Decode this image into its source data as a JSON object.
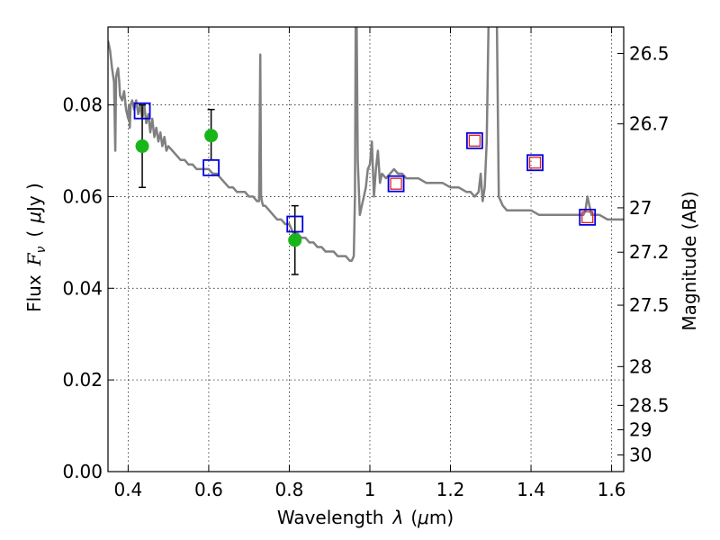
{
  "chart_data": {
    "type": "scatter",
    "xlabel": "Wavelength",
    "xlabel_symbol": "λ",
    "xlabel_unit_prefix": "(",
    "xlabel_unit_mu": "μ",
    "xlabel_unit_suffix": "m)",
    "ylabel_prefix": "Flux",
    "ylabel_symbol_main": "F",
    "ylabel_symbol_sub": "ν",
    "ylabel_unit_open": "(",
    "ylabel_unit_mu": "μ",
    "ylabel_unit_rest": "Jy )",
    "y2label": "Magnitude (AB)",
    "xlim": [
      0.35,
      1.63
    ],
    "ylim": [
      0.0,
      0.097
    ],
    "grid": true,
    "x_ticks": [
      {
        "value": 0.4,
        "label": "0.4"
      },
      {
        "value": 0.6,
        "label": "0.6"
      },
      {
        "value": 0.8,
        "label": "0.8"
      },
      {
        "value": 1.0,
        "label": "1"
      },
      {
        "value": 1.2,
        "label": "1.2"
      },
      {
        "value": 1.4,
        "label": "1.4"
      },
      {
        "value": 1.6,
        "label": "1.6"
      }
    ],
    "y_ticks": [
      {
        "value": 0.0,
        "label": "0.00"
      },
      {
        "value": 0.02,
        "label": "0.02"
      },
      {
        "value": 0.04,
        "label": "0.04"
      },
      {
        "value": 0.06,
        "label": "0.06"
      },
      {
        "value": 0.08,
        "label": "0.08"
      }
    ],
    "y2_ticks": [
      {
        "mag": 26.5,
        "label": "26.5"
      },
      {
        "mag": 26.7,
        "label": "26.7"
      },
      {
        "mag": 27.0,
        "label": "27"
      },
      {
        "mag": 27.2,
        "label": "27.2"
      },
      {
        "mag": 27.5,
        "label": "27.5"
      },
      {
        "mag": 28.0,
        "label": "28"
      },
      {
        "mag": 28.5,
        "label": "28.5"
      },
      {
        "mag": 29.0,
        "label": "29"
      },
      {
        "mag": 30.0,
        "label": "30"
      }
    ],
    "sed_model": {
      "color": "#808080",
      "x": [
        0.35,
        0.355,
        0.36,
        0.365,
        0.368,
        0.37,
        0.372,
        0.375,
        0.378,
        0.38,
        0.385,
        0.39,
        0.395,
        0.4,
        0.402,
        0.404,
        0.406,
        0.41,
        0.415,
        0.42,
        0.425,
        0.43,
        0.435,
        0.44,
        0.445,
        0.45,
        0.455,
        0.46,
        0.465,
        0.47,
        0.475,
        0.48,
        0.485,
        0.49,
        0.495,
        0.5,
        0.51,
        0.52,
        0.53,
        0.54,
        0.55,
        0.56,
        0.57,
        0.58,
        0.59,
        0.6,
        0.61,
        0.62,
        0.63,
        0.64,
        0.65,
        0.66,
        0.67,
        0.68,
        0.69,
        0.7,
        0.71,
        0.72,
        0.725,
        0.728,
        0.73,
        0.732,
        0.735,
        0.74,
        0.75,
        0.76,
        0.77,
        0.78,
        0.79,
        0.8,
        0.81,
        0.82,
        0.83,
        0.84,
        0.85,
        0.86,
        0.87,
        0.88,
        0.89,
        0.9,
        0.91,
        0.92,
        0.93,
        0.94,
        0.95,
        0.955,
        0.96,
        0.963,
        0.965,
        0.967,
        0.97,
        0.975,
        0.98,
        0.985,
        0.99,
        0.995,
        1.0,
        1.005,
        1.01,
        1.015,
        1.02,
        1.025,
        1.03,
        1.04,
        1.05,
        1.06,
        1.07,
        1.08,
        1.09,
        1.1,
        1.12,
        1.14,
        1.16,
        1.18,
        1.2,
        1.22,
        1.24,
        1.25,
        1.26,
        1.27,
        1.275,
        1.28,
        1.285,
        1.29,
        1.295,
        1.3,
        1.305,
        1.31,
        1.315,
        1.32,
        1.33,
        1.34,
        1.35,
        1.36,
        1.37,
        1.38,
        1.4,
        1.42,
        1.44,
        1.46,
        1.48,
        1.5,
        1.52,
        1.53,
        1.535,
        1.54,
        1.55,
        1.57,
        1.59,
        1.61,
        1.63
      ],
      "y": [
        0.094,
        0.092,
        0.088,
        0.085,
        0.07,
        0.086,
        0.087,
        0.088,
        0.085,
        0.082,
        0.081,
        0.083,
        0.079,
        0.077,
        0.08,
        0.075,
        0.08,
        0.081,
        0.079,
        0.081,
        0.078,
        0.08,
        0.077,
        0.08,
        0.076,
        0.078,
        0.074,
        0.077,
        0.073,
        0.075,
        0.072,
        0.074,
        0.071,
        0.073,
        0.07,
        0.071,
        0.07,
        0.069,
        0.068,
        0.068,
        0.067,
        0.067,
        0.066,
        0.066,
        0.066,
        0.066,
        0.065,
        0.065,
        0.064,
        0.063,
        0.062,
        0.062,
        0.061,
        0.061,
        0.061,
        0.06,
        0.06,
        0.059,
        0.059,
        0.091,
        0.06,
        0.059,
        0.058,
        0.058,
        0.057,
        0.056,
        0.055,
        0.055,
        0.054,
        0.054,
        0.052,
        0.052,
        0.051,
        0.051,
        0.05,
        0.05,
        0.049,
        0.049,
        0.048,
        0.048,
        0.048,
        0.047,
        0.047,
        0.047,
        0.046,
        0.046,
        0.047,
        0.06,
        0.1,
        0.1,
        0.068,
        0.056,
        0.058,
        0.06,
        0.062,
        0.066,
        0.067,
        0.072,
        0.06,
        0.066,
        0.07,
        0.063,
        0.065,
        0.064,
        0.065,
        0.066,
        0.065,
        0.065,
        0.064,
        0.064,
        0.064,
        0.063,
        0.063,
        0.063,
        0.062,
        0.062,
        0.061,
        0.061,
        0.06,
        0.061,
        0.065,
        0.059,
        0.062,
        0.072,
        0.1,
        0.1,
        0.1,
        0.1,
        0.1,
        0.06,
        0.058,
        0.057,
        0.057,
        0.057,
        0.057,
        0.057,
        0.057,
        0.056,
        0.056,
        0.056,
        0.056,
        0.056,
        0.056,
        0.056,
        0.057,
        0.06,
        0.056,
        0.056,
        0.055,
        0.055,
        0.055
      ]
    },
    "observed_points": {
      "color": "#19b619",
      "points": [
        {
          "x": 0.435,
          "y": 0.071,
          "err_low": 0.062,
          "err_high": 0.08
        },
        {
          "x": 0.606,
          "y": 0.0733,
          "err_low": 0.068,
          "err_high": 0.079
        },
        {
          "x": 0.814,
          "y": 0.0505,
          "err_low": 0.043,
          "err_high": 0.058
        }
      ]
    },
    "model_boxes": {
      "color": "#0000dd",
      "points": [
        {
          "x": 0.435,
          "y": 0.0787
        },
        {
          "x": 0.606,
          "y": 0.0663
        },
        {
          "x": 0.814,
          "y": 0.054
        },
        {
          "x": 1.065,
          "y": 0.0628
        },
        {
          "x": 1.26,
          "y": 0.0722
        },
        {
          "x": 1.41,
          "y": 0.0674
        },
        {
          "x": 1.54,
          "y": 0.0555
        }
      ]
    },
    "upper_limit_boxes": {
      "color": "#dd2222",
      "points": [
        {
          "x": 1.065,
          "y": 0.0628
        },
        {
          "x": 1.26,
          "y": 0.0722
        },
        {
          "x": 1.41,
          "y": 0.0674
        },
        {
          "x": 1.54,
          "y": 0.0555
        }
      ]
    }
  }
}
